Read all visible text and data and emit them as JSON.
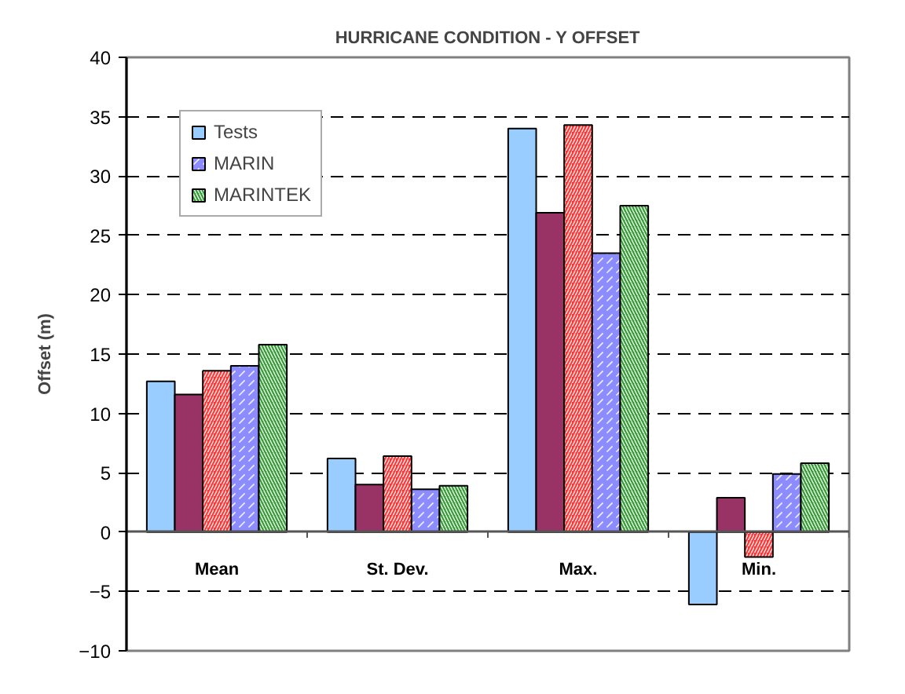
{
  "chart_data": {
    "type": "bar",
    "title": "HURRICANE CONDITION - Y OFFSET",
    "ylabel": "Offset (m)",
    "categories": [
      "Mean",
      "St. Dev.",
      "Max.",
      "Min."
    ],
    "series": [
      {
        "name": "Tests",
        "color": "#99ccff",
        "values": [
          12.7,
          6.2,
          34.0,
          -6.1
        ]
      },
      {
        "color": "#993366",
        "values": [
          11.6,
          4.0,
          26.9,
          2.9
        ]
      },
      {
        "color": "#ff3333",
        "values": [
          13.6,
          6.4,
          34.3,
          -2.1
        ]
      },
      {
        "name": "MARIN",
        "color": "#8c8cff",
        "values": [
          14.0,
          3.6,
          23.5,
          4.9
        ]
      },
      {
        "name": "MARINTEK",
        "color": "#339933",
        "values": [
          15.8,
          3.9,
          27.5,
          5.8
        ]
      }
    ],
    "ylim": [
      -10,
      40
    ],
    "yticks": [
      -10,
      -5,
      0,
      5,
      10,
      15,
      20,
      25,
      30,
      35,
      40
    ],
    "grid": "y",
    "legend": "top left"
  }
}
